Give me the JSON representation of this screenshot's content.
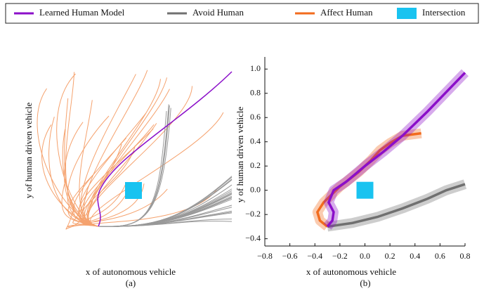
{
  "chart_data": [
    {
      "type": "trajectories",
      "x_label": "x of autonomous vehicle",
      "y_label": "y of human driven vehicle",
      "caption": "(a)"
    },
    {
      "type": "line",
      "x_label": "x of autonomous vehicle",
      "y_label": "y of human driven vehicle",
      "caption": "(b)",
      "xlim": [
        -0.8,
        0.8
      ],
      "ylim": [
        -0.46,
        1.1
      ],
      "xticks": [
        {
          "value": -0.8,
          "label": "−0.8"
        },
        {
          "value": -0.6,
          "label": "−0.6"
        },
        {
          "value": -0.4,
          "label": "−0.4"
        },
        {
          "value": -0.2,
          "label": "−0.2"
        },
        {
          "value": 0,
          "label": "0.0"
        },
        0.2,
        0.4,
        0.6,
        0.8
      ],
      "yticks": [
        {
          "value": -0.4,
          "label": "−0.4"
        },
        {
          "value": -0.2,
          "label": "−0.2"
        },
        {
          "value": 0,
          "label": "0.0"
        },
        0.2,
        0.4,
        0.6,
        0.8,
        {
          "value": 1,
          "label": "1.0"
        }
      ],
      "series": [
        {
          "name": "Learned Human Model",
          "color": "#8b0fc9",
          "x": [
            -0.3,
            -0.26,
            -0.25,
            -0.29,
            -0.25,
            -0.15,
            0,
            0.15,
            0.3,
            0.5,
            0.8
          ],
          "values": [
            -0.3,
            -0.25,
            -0.18,
            -0.1,
            0,
            0.07,
            0.2,
            0.32,
            0.45,
            0.65,
            0.97
          ]
        },
        {
          "name": "Avoid Human",
          "color": "#707070",
          "x": [
            -0.3,
            -0.1,
            0.1,
            0.3,
            0.5,
            0.65,
            0.8
          ],
          "values": [
            -0.3,
            -0.27,
            -0.22,
            -0.15,
            -0.07,
            0,
            0.05
          ]
        },
        {
          "name": "Affect Human",
          "color": "#f26b1d",
          "x": [
            -0.3,
            -0.36,
            -0.38,
            -0.33,
            -0.2,
            -0.05,
            0.05,
            0.12,
            0.2,
            0.3,
            0.45
          ],
          "values": [
            -0.3,
            -0.25,
            -0.18,
            -0.1,
            0.03,
            0.15,
            0.25,
            0.33,
            0.39,
            0.45,
            0.47
          ]
        }
      ],
      "intersection": {
        "label": "Intersection",
        "color": "#19c3f0",
        "x": 0,
        "y": 0
      }
    }
  ]
}
